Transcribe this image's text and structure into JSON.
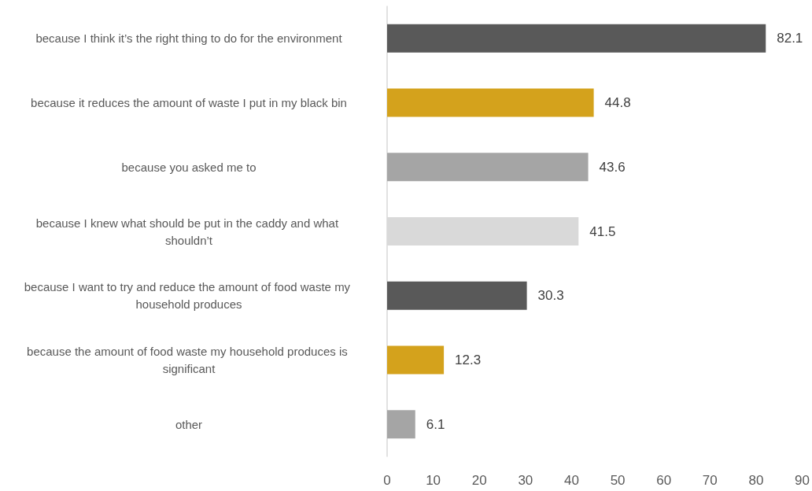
{
  "chart_data": {
    "type": "bar",
    "orientation": "horizontal",
    "categories": [
      "because I think it’s the right thing to do for the environment",
      "because it reduces the amount of waste I put in my black bin",
      "because you asked me to",
      "because I knew what should be put in the caddy and what shouldn’t",
      "because I want to try and reduce the amount of food waste my household produces",
      "because the amount of food waste my household produces is significant",
      "other"
    ],
    "values": [
      82.1,
      44.8,
      43.6,
      41.5,
      30.3,
      12.3,
      6.1
    ],
    "colors": [
      "#595959",
      "#d4a21c",
      "#a5a5a5",
      "#d9d9d9",
      "#595959",
      "#d4a21c",
      "#a5a5a5"
    ],
    "xlim": [
      0,
      90
    ],
    "xticks": [
      0,
      10,
      20,
      30,
      40,
      50,
      60,
      70,
      80,
      90
    ],
    "data_labels": true
  }
}
